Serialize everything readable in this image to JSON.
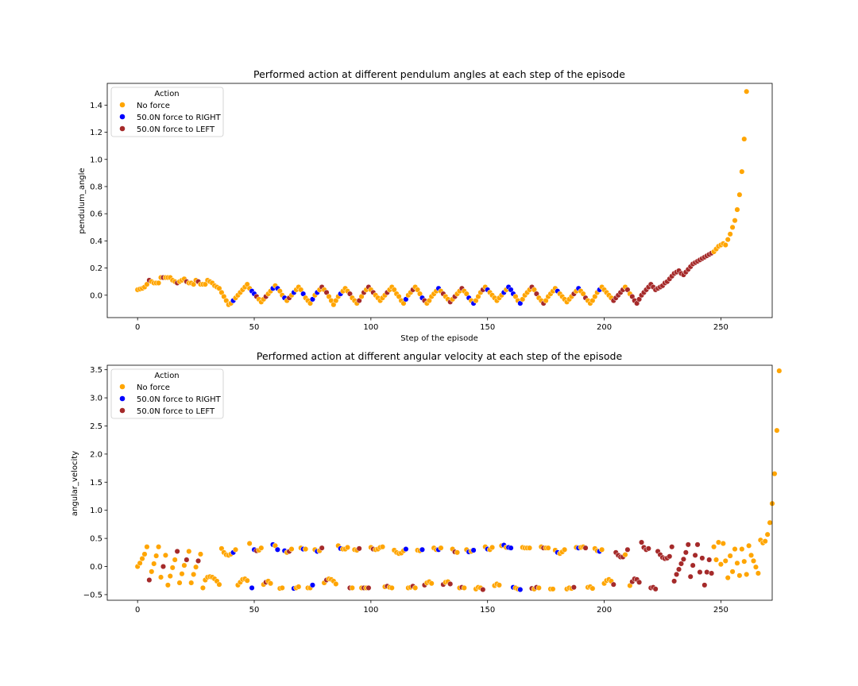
{
  "legend_title": "Action",
  "action_labels": [
    "No force",
    "50.0N force to RIGHT",
    "50.0N force to LEFT"
  ],
  "colors": {
    "no_force": "#ffa500",
    "right": "#0000ff",
    "left": "#a52a2a"
  },
  "chart_data": [
    {
      "type": "scatter",
      "title": "Performed action at different pendulum angles at each step of the episode",
      "xlabel": "Step of the episode",
      "ylabel": "pendulum_angle",
      "xlim": [
        -13,
        272
      ],
      "ylim": [
        -0.165,
        1.56
      ],
      "xticks": [
        0,
        50,
        100,
        150,
        200,
        250
      ],
      "yticks": [
        0.0,
        0.2,
        0.4,
        0.6,
        0.8,
        1.0,
        1.2,
        1.4
      ],
      "ytick_labels": [
        "0.0",
        "0.2",
        "0.4",
        "0.6",
        "0.8",
        "1.0",
        "1.2",
        "1.4"
      ],
      "legend_position": "upper left",
      "grid": false,
      "action_codes": "0000020000020000020002000020000000000000010000000112000200101001020100010001010202000001000200020202020000020000000100200012000001020020200200101000201000000101110010000202002000001000000201002000001000002222202022222222222222222222222222222222222",
      "values": [
        0.04,
        0.045,
        0.05,
        0.06,
        0.08,
        0.11,
        0.1,
        0.09,
        0.09,
        0.09,
        0.13,
        0.13,
        0.13,
        0.13,
        0.13,
        0.11,
        0.1,
        0.09,
        0.1,
        0.11,
        0.12,
        0.1,
        0.09,
        0.09,
        0.08,
        0.11,
        0.1,
        0.08,
        0.08,
        0.08,
        0.11,
        0.1,
        0.09,
        0.07,
        0.06,
        0.05,
        0.02,
        -0.01,
        -0.04,
        -0.07,
        -0.06,
        -0.04,
        -0.02,
        0.0,
        0.02,
        0.04,
        0.06,
        0.08,
        0.05,
        0.03,
        0.01,
        -0.01,
        -0.03,
        -0.05,
        -0.03,
        -0.01,
        0.01,
        0.03,
        0.05,
        0.07,
        0.05,
        0.03,
        0.0,
        -0.02,
        -0.04,
        -0.02,
        0.0,
        0.02,
        0.04,
        0.06,
        0.04,
        0.01,
        -0.02,
        -0.04,
        -0.06,
        -0.03,
        0.0,
        0.02,
        0.04,
        0.06,
        0.04,
        0.02,
        -0.01,
        -0.04,
        -0.07,
        -0.04,
        -0.01,
        0.01,
        0.03,
        0.05,
        0.03,
        0.01,
        -0.02,
        -0.04,
        -0.06,
        -0.04,
        -0.01,
        0.02,
        0.04,
        0.06,
        0.04,
        0.02,
        0.0,
        -0.02,
        -0.04,
        -0.02,
        0.0,
        0.02,
        0.04,
        0.06,
        0.04,
        0.01,
        -0.01,
        -0.04,
        -0.06,
        -0.03,
        0.0,
        0.02,
        0.04,
        0.06,
        0.04,
        0.01,
        -0.02,
        -0.04,
        -0.06,
        -0.04,
        -0.01,
        0.01,
        0.03,
        0.05,
        0.03,
        0.01,
        -0.01,
        -0.03,
        -0.05,
        -0.03,
        -0.01,
        0.01,
        0.03,
        0.05,
        0.03,
        0.01,
        -0.02,
        -0.04,
        -0.06,
        -0.04,
        -0.01,
        0.02,
        0.04,
        0.06,
        0.04,
        0.02,
        0.0,
        -0.02,
        -0.04,
        -0.02,
        0.0,
        0.02,
        0.04,
        0.06,
        0.04,
        0.01,
        -0.01,
        -0.04,
        -0.06,
        -0.03,
        0.0,
        0.02,
        0.04,
        0.06,
        0.04,
        0.01,
        -0.02,
        -0.04,
        -0.06,
        -0.04,
        -0.01,
        0.01,
        0.03,
        0.05,
        0.03,
        0.01,
        -0.01,
        -0.03,
        -0.05,
        -0.03,
        -0.01,
        0.01,
        0.03,
        0.05,
        0.03,
        0.01,
        -0.02,
        -0.04,
        -0.06,
        -0.04,
        -0.01,
        0.02,
        0.04,
        0.06,
        0.04,
        0.02,
        0.0,
        -0.02,
        -0.04,
        -0.02,
        0.0,
        0.02,
        0.04,
        0.06,
        0.04,
        0.01,
        -0.01,
        -0.04,
        -0.06,
        -0.03,
        0.0,
        0.02,
        0.04,
        0.06,
        0.08,
        0.06,
        0.04,
        0.05,
        0.06,
        0.07,
        0.09,
        0.1,
        0.12,
        0.14,
        0.16,
        0.17,
        0.18,
        0.16,
        0.15,
        0.17,
        0.19,
        0.21,
        0.23,
        0.24,
        0.25,
        0.26,
        0.27,
        0.28,
        0.29,
        0.3,
        0.31,
        0.32,
        0.34,
        0.36,
        0.37,
        0.38,
        0.37,
        0.41,
        0.45,
        0.5,
        0.55,
        0.63,
        0.74,
        0.91,
        1.15,
        1.5
      ]
    },
    {
      "type": "scatter",
      "title": "Performed action at different angular velocity at each step of the episode",
      "xlabel": "",
      "ylabel": "angular_velocity",
      "xlim": [
        -13,
        272
      ],
      "ylim": [
        -0.6,
        3.58
      ],
      "xticks": [
        0,
        50,
        100,
        150,
        200,
        250
      ],
      "yticks": [
        -0.5,
        0.0,
        0.5,
        1.0,
        1.5,
        2.0,
        2.5,
        3.0,
        3.5
      ],
      "ytick_labels": [
        "−0.5",
        "0.0",
        "0.5",
        "1.0",
        "1.5",
        "2.0",
        "2.5",
        "3.0",
        "3.5"
      ],
      "legend_position": "upper left",
      "grid": false,
      "action_codes": "0000020000020000020002000020000000000000010000000112000200101001020100010001010202000001000200020202020000020000000100200012000001020020200200101000201000000101110010000202002000001000000201002000001000002222202022222222222222222222222222222222222",
      "values": [
        0.0,
        0.06,
        0.14,
        0.22,
        0.35,
        -0.24,
        -0.09,
        0.05,
        0.19,
        0.35,
        -0.19,
        0.0,
        0.2,
        -0.33,
        -0.17,
        -0.02,
        0.12,
        0.27,
        -0.29,
        -0.13,
        0.02,
        0.12,
        0.27,
        -0.29,
        -0.14,
        -0.01,
        0.1,
        0.22,
        -0.38,
        -0.24,
        -0.19,
        -0.18,
        -0.19,
        -0.22,
        -0.26,
        -0.32,
        0.32,
        0.25,
        0.21,
        0.2,
        0.22,
        0.25,
        0.3,
        -0.33,
        -0.28,
        -0.23,
        -0.22,
        -0.25,
        0.41,
        -0.38,
        0.3,
        0.28,
        0.29,
        0.33,
        -0.32,
        -0.28,
        -0.26,
        -0.3,
        0.39,
        0.37,
        0.3,
        -0.39,
        -0.38,
        0.28,
        0.25,
        0.27,
        0.31,
        -0.39,
        -0.38,
        -0.36,
        0.33,
        0.31,
        0.31,
        -0.38,
        -0.38,
        -0.33,
        0.3,
        0.27,
        0.28,
        0.33,
        -0.29,
        -0.24,
        -0.22,
        -0.23,
        -0.26,
        -0.31,
        0.37,
        0.32,
        0.31,
        0.31,
        0.34,
        -0.38,
        -0.38,
        0.3,
        0.29,
        0.32,
        -0.38,
        -0.38,
        -0.38,
        -0.38,
        0.34,
        0.31,
        0.3,
        0.31,
        0.34,
        0.35,
        -0.36,
        -0.35,
        -0.37,
        -0.38,
        0.29,
        0.25,
        0.23,
        0.24,
        0.28,
        0.31,
        -0.38,
        -0.37,
        -0.35,
        -0.38,
        0.29,
        0.28,
        0.3,
        -0.33,
        -0.29,
        -0.27,
        -0.3,
        0.33,
        0.3,
        0.3,
        0.33,
        -0.32,
        -0.28,
        -0.27,
        -0.31,
        0.31,
        0.26,
        0.25,
        -0.38,
        -0.37,
        -0.38,
        0.3,
        0.26,
        0.27,
        0.29,
        -0.4,
        -0.37,
        -0.38,
        -0.41,
        0.35,
        0.31,
        0.3,
        0.34,
        -0.34,
        -0.31,
        -0.33,
        0.37,
        0.38,
        0.34,
        0.34,
        0.33,
        -0.37,
        -0.38,
        -0.4,
        -0.41,
        0.34,
        0.33,
        0.33,
        0.33,
        -0.39,
        -0.4,
        -0.37,
        -0.38,
        0.35,
        0.33,
        0.33,
        0.33,
        -0.4,
        -0.4,
        0.29,
        0.25,
        0.23,
        0.26,
        0.3,
        -0.4,
        -0.38,
        -0.39,
        -0.37,
        0.34,
        0.33,
        0.34,
        0.35,
        0.33,
        -0.37,
        -0.36,
        -0.39,
        0.32,
        0.28,
        0.27,
        0.3,
        -0.3,
        -0.25,
        -0.23,
        -0.26,
        -0.32,
        0.25,
        0.2,
        0.17,
        0.17,
        0.21,
        0.3,
        -0.34,
        -0.27,
        -0.22,
        -0.23,
        -0.28,
        0.43,
        0.34,
        0.3,
        0.32,
        -0.38,
        -0.37,
        -0.4,
        0.27,
        0.21,
        0.16,
        0.14,
        0.15,
        0.18,
        0.35,
        -0.26,
        -0.14,
        -0.05,
        0.05,
        0.13,
        0.25,
        0.39,
        -0.18,
        0.02,
        0.2,
        0.39,
        -0.1,
        0.15,
        -0.33,
        -0.1,
        0.12,
        -0.12,
        0.35,
        0.12,
        0.43,
        0.04,
        0.41,
        0.1,
        -0.2,
        0.19,
        -0.09,
        0.31,
        0.06,
        -0.16,
        0.31,
        0.09,
        -0.14,
        0.37,
        0.2,
        0.1,
        -0.01,
        -0.12,
        0.47,
        0.42,
        0.45,
        0.57,
        0.78,
        1.12,
        1.65,
        2.42,
        3.48
      ]
    }
  ]
}
